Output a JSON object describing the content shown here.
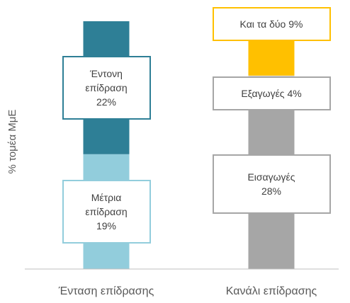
{
  "chart_data": {
    "type": "stacked-bar",
    "y_label": "% τομέα ΜμΕ",
    "categories": [
      "Ένταση επίδρασης",
      "Κανάλι επίδρασης"
    ],
    "series": [
      {
        "name": "Μέτρια επίδραση",
        "color": "#92cddc",
        "values": [
          19,
          null
        ],
        "value_labels": [
          "19%",
          null
        ]
      },
      {
        "name": "Έντονη επίδραση",
        "color": "#2e7f96",
        "values": [
          22,
          null
        ],
        "value_labels": [
          "22%",
          null
        ]
      },
      {
        "name": "Εισαγωγές",
        "color": "#a6a6a6",
        "values": [
          null,
          28
        ],
        "value_labels": [
          null,
          "28%"
        ]
      },
      {
        "name": "Εξαγωγές",
        "color": "#d9d9d9",
        "values": [
          null,
          4
        ],
        "value_labels": [
          null,
          "4%"
        ]
      },
      {
        "name": "Και τα δύο",
        "color": "#ffc000",
        "values": [
          null,
          9
        ],
        "value_labels": [
          null,
          "9%"
        ]
      }
    ]
  }
}
